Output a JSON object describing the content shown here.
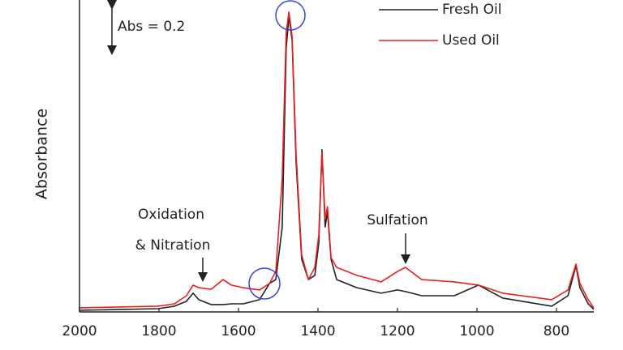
{
  "chart_data": {
    "type": "line",
    "y_label": "Absorbance",
    "x": [
      2000,
      1802,
      1761,
      1731,
      1714,
      1700,
      1669,
      1639,
      1618,
      1588,
      1547,
      1522,
      1506,
      1490,
      1480,
      1473,
      1465,
      1455,
      1441,
      1424,
      1408,
      1398,
      1390,
      1382,
      1376,
      1367,
      1353,
      1302,
      1241,
      1200,
      1180,
      1139,
      1057,
      996,
      935,
      812,
      771,
      751,
      741,
      720,
      706
    ],
    "series": [
      {
        "name": "Fresh Oil",
        "color": "#222222",
        "values": [
          0.007,
          0.014,
          0.025,
          0.046,
          0.081,
          0.053,
          0.032,
          0.032,
          0.035,
          0.035,
          0.053,
          0.123,
          0.14,
          0.368,
          1.14,
          1.281,
          1.175,
          0.649,
          0.228,
          0.14,
          0.158,
          0.298,
          0.702,
          0.368,
          0.432,
          0.228,
          0.14,
          0.105,
          0.081,
          0.095,
          0.088,
          0.07,
          0.07,
          0.116,
          0.06,
          0.025,
          0.07,
          0.2,
          0.105,
          0.035,
          0.011
        ]
      },
      {
        "name": "Used Oil",
        "color": "#e8201e",
        "values": [
          0.018,
          0.025,
          0.035,
          0.07,
          0.116,
          0.105,
          0.098,
          0.14,
          0.116,
          0.105,
          0.095,
          0.123,
          0.175,
          0.579,
          1.211,
          1.298,
          1.193,
          0.684,
          0.246,
          0.14,
          0.193,
          0.333,
          0.691,
          0.404,
          0.456,
          0.235,
          0.193,
          0.158,
          0.13,
          0.175,
          0.193,
          0.14,
          0.13,
          0.116,
          0.081,
          0.053,
          0.095,
          0.207,
          0.123,
          0.053,
          0.018
        ]
      }
    ],
    "xlim": [
      2000,
      706
    ],
    "xticks": [
      2000,
      1800,
      1600,
      1400,
      1200,
      1000,
      800
    ],
    "ylim": [
      0,
      1.35
    ],
    "annotations": [
      "Abs = 0.2",
      "Oxidation",
      "& Nitration",
      "Sulfation"
    ]
  }
}
